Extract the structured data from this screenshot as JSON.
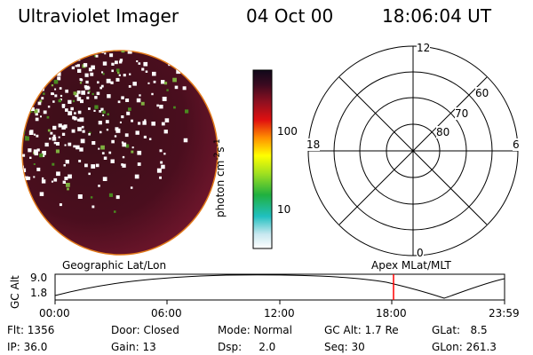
{
  "header": {
    "title": "Ultraviolet Imager",
    "date": "04 Oct 00",
    "time": "18:06:04 UT"
  },
  "colorbar": {
    "label": "photon cm",
    "label_sup1": "-2",
    "label_mid": "s",
    "label_sup2": "-1",
    "ticks": [
      "100",
      "10"
    ]
  },
  "polar": {
    "labels": {
      "top": "12",
      "left": "18",
      "right": "6",
      "bottom": "0",
      "ring60": "60",
      "ring70": "70",
      "ring80": "80"
    }
  },
  "orbit": {
    "left_label": "Geographic Lat/Lon",
    "right_label": "Apex MLat/MLT",
    "yaxis_label": "GC Alt",
    "ytick_top": "9.0",
    "ytick_bottom": "1.8",
    "xticks": [
      "00:00",
      "06:00",
      "12:00",
      "18:00",
      "23:59"
    ]
  },
  "info": {
    "flt": "Flt: 1356",
    "door": "Door: Closed",
    "mode": "Mode: Normal",
    "gcalt": "GC Alt: 1.7 Re",
    "glat": "GLat:   8.5",
    "ip": "IP: 36.0",
    "gain": "Gain: 13",
    "dsp": "Dsp:     2.0",
    "seq": "Seq: 30",
    "glon": "GLon: 261.3"
  },
  "colors": {
    "disk_dark": "#2a0a12",
    "disk_mid": "#5a1020",
    "orbit_marker": "#ff0000"
  }
}
